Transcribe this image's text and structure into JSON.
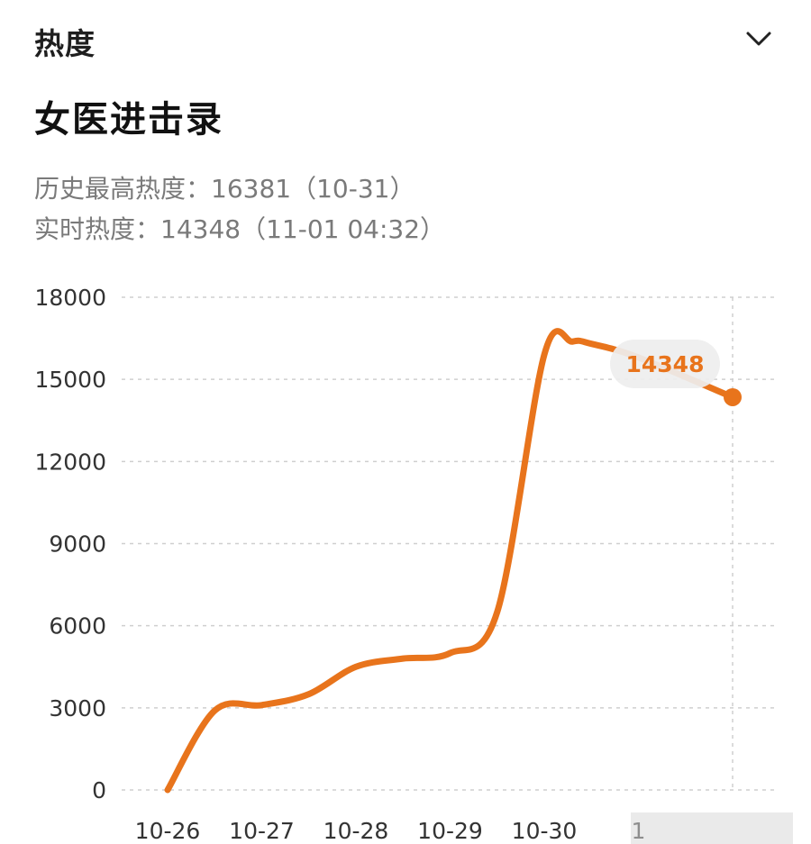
{
  "header": {
    "section_label": "热度",
    "collapse_icon": "chevron-down-icon"
  },
  "title": "女医进击录",
  "stats": {
    "peak_label": "历史最高热度：",
    "peak_value": "16381",
    "peak_date": "（10-31）",
    "current_label": "实时热度：",
    "current_value": "14348",
    "current_time": "（11-01 04:32）"
  },
  "colors": {
    "accent": "#e8741c",
    "grid": "#cfcfcf",
    "text_muted": "#7a7a7a"
  },
  "chart_data": {
    "type": "line",
    "title": "",
    "xlabel": "",
    "ylabel": "",
    "categories": [
      "10-26",
      "10-27",
      "10-28",
      "10-29",
      "10-30",
      "1"
    ],
    "x": [
      0,
      0.5,
      1,
      1.5,
      2,
      2.5,
      3,
      3.5,
      4,
      4.3,
      4.5,
      5.0,
      6.0
    ],
    "values": [
      0,
      2900,
      3100,
      3500,
      4500,
      4800,
      5000,
      6500,
      15900,
      16381,
      16300,
      15800,
      14348
    ],
    "ylim": [
      0,
      18000
    ],
    "yticks": [
      "0",
      "3000",
      "6000",
      "9000",
      "12000",
      "15000",
      "18000"
    ],
    "grid": true,
    "tooltip_value": "14348"
  }
}
